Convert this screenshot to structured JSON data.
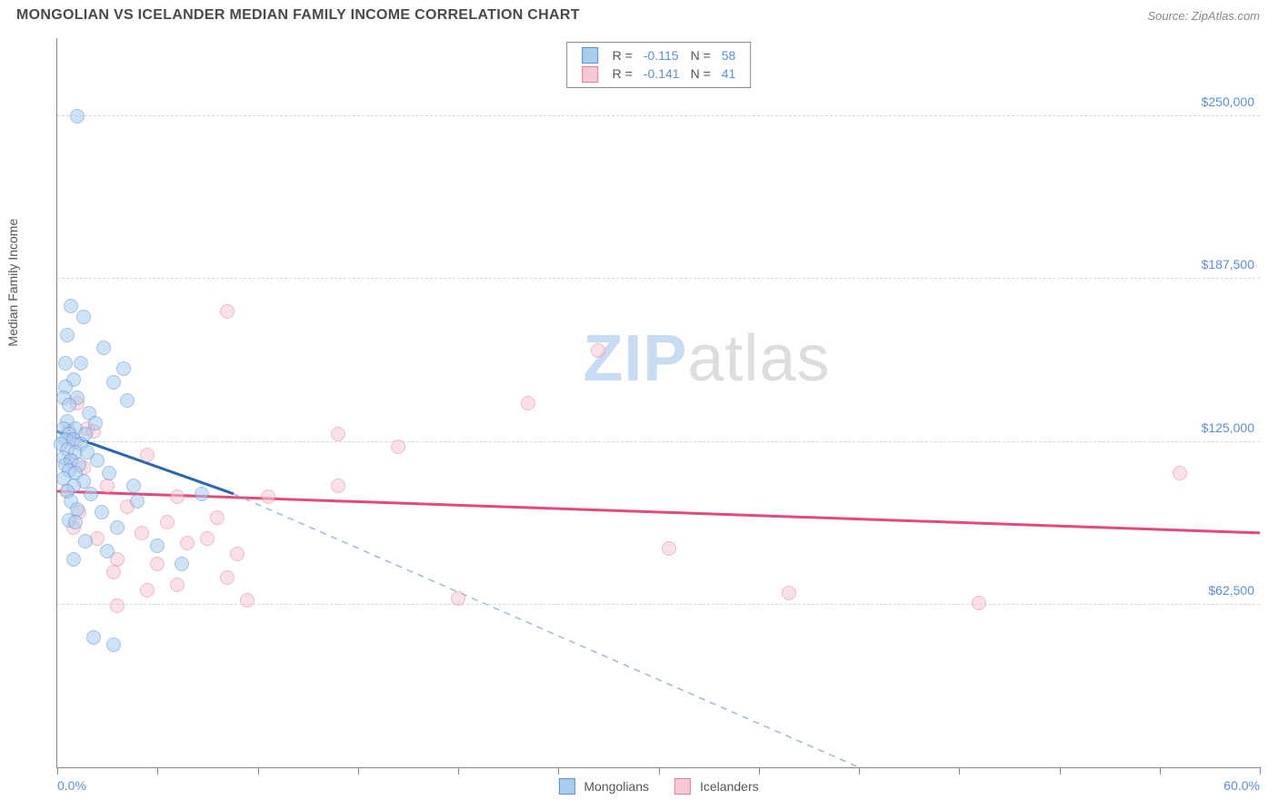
{
  "title": "MONGOLIAN VS ICELANDER MEDIAN FAMILY INCOME CORRELATION CHART",
  "source": "Source: ZipAtlas.com",
  "watermark": {
    "part1": "ZIP",
    "part2": "atlas"
  },
  "y_axis_label": "Median Family Income",
  "chart": {
    "type": "scatter",
    "background_color": "#ffffff",
    "grid_color": "#d8d8d8",
    "xlim": [
      0,
      60
    ],
    "ylim": [
      0,
      280000
    ],
    "x_range_labels": [
      "0.0%",
      "60.0%"
    ],
    "y_ticks": [
      {
        "v": 62500,
        "label": "$62,500"
      },
      {
        "v": 125000,
        "label": "$125,000"
      },
      {
        "v": 187500,
        "label": "$187,500"
      },
      {
        "v": 250000,
        "label": "$250,000"
      }
    ],
    "x_tick_positions": [
      0,
      5,
      10,
      15,
      20,
      25,
      30,
      35,
      40,
      45,
      50,
      55,
      60
    ],
    "label_color": "#5b8fd6",
    "label_fontsize": 14,
    "marker_radius": 8,
    "marker_opacity": 0.55,
    "series": {
      "mongolians": {
        "label": "Mongolians",
        "fill": "#a9cdef",
        "stroke": "#5b8fd6",
        "line_color": "#2b66b3",
        "line_width": 3,
        "dash_color": "#9bb9dd",
        "R": "-0.115",
        "N": "58",
        "trend_solid": {
          "x1": 0,
          "y1": 129000,
          "x2": 8.8,
          "y2": 105000
        },
        "trend_dashed": {
          "x1": 8.8,
          "y1": 105000,
          "x2": 40,
          "y2": 0
        },
        "points": [
          [
            1.0,
            250000
          ],
          [
            0.7,
            177000
          ],
          [
            1.3,
            173000
          ],
          [
            0.5,
            166000
          ],
          [
            2.3,
            161000
          ],
          [
            0.4,
            155000
          ],
          [
            1.2,
            155000
          ],
          [
            3.3,
            153000
          ],
          [
            0.8,
            149000
          ],
          [
            2.8,
            148000
          ],
          [
            0.4,
            146000
          ],
          [
            0.3,
            142000
          ],
          [
            1.0,
            142000
          ],
          [
            3.5,
            141000
          ],
          [
            0.6,
            139000
          ],
          [
            1.6,
            136000
          ],
          [
            0.5,
            133000
          ],
          [
            1.9,
            132000
          ],
          [
            0.3,
            130000
          ],
          [
            0.9,
            130000
          ],
          [
            0.6,
            128000
          ],
          [
            1.4,
            128000
          ],
          [
            0.4,
            126000
          ],
          [
            0.8,
            126000
          ],
          [
            0.2,
            124000
          ],
          [
            1.2,
            124000
          ],
          [
            0.5,
            122000
          ],
          [
            0.9,
            121000
          ],
          [
            1.5,
            121000
          ],
          [
            0.3,
            119000
          ],
          [
            0.7,
            118000
          ],
          [
            2.0,
            118000
          ],
          [
            0.4,
            116000
          ],
          [
            1.1,
            116000
          ],
          [
            0.6,
            114000
          ],
          [
            0.9,
            113000
          ],
          [
            2.6,
            113000
          ],
          [
            0.3,
            111000
          ],
          [
            1.3,
            110000
          ],
          [
            0.8,
            108000
          ],
          [
            3.8,
            108000
          ],
          [
            0.5,
            106000
          ],
          [
            1.7,
            105000
          ],
          [
            7.2,
            105000
          ],
          [
            0.7,
            102000
          ],
          [
            4.0,
            102000
          ],
          [
            1.0,
            99000
          ],
          [
            2.2,
            98000
          ],
          [
            0.6,
            95000
          ],
          [
            0.9,
            94000
          ],
          [
            3.0,
            92000
          ],
          [
            1.4,
            87000
          ],
          [
            5.0,
            85000
          ],
          [
            2.5,
            83000
          ],
          [
            0.8,
            80000
          ],
          [
            6.2,
            78000
          ],
          [
            1.8,
            50000
          ],
          [
            2.8,
            47000
          ]
        ]
      },
      "icelanders": {
        "label": "Icelanders",
        "fill": "#f7c9d4",
        "stroke": "#e97f9a",
        "line_color": "#e24a78",
        "line_width": 3,
        "R": "-0.141",
        "N": "41",
        "trend_solid": {
          "x1": 0,
          "y1": 106000,
          "x2": 60,
          "y2": 90000
        },
        "points": [
          [
            8.5,
            175000
          ],
          [
            27.0,
            160000
          ],
          [
            1.0,
            140000
          ],
          [
            23.5,
            140000
          ],
          [
            1.5,
            130000
          ],
          [
            0.6,
            129000
          ],
          [
            1.8,
            129000
          ],
          [
            14.0,
            128000
          ],
          [
            0.9,
            125000
          ],
          [
            17.0,
            123000
          ],
          [
            4.5,
            120000
          ],
          [
            0.7,
            118000
          ],
          [
            1.3,
            115000
          ],
          [
            56.0,
            113000
          ],
          [
            14.0,
            108000
          ],
          [
            2.5,
            108000
          ],
          [
            0.5,
            106000
          ],
          [
            6.0,
            104000
          ],
          [
            10.5,
            104000
          ],
          [
            3.5,
            100000
          ],
          [
            1.1,
            98000
          ],
          [
            8.0,
            96000
          ],
          [
            5.5,
            94000
          ],
          [
            0.8,
            92000
          ],
          [
            4.2,
            90000
          ],
          [
            2.0,
            88000
          ],
          [
            7.5,
            88000
          ],
          [
            6.5,
            86000
          ],
          [
            30.5,
            84000
          ],
          [
            9.0,
            82000
          ],
          [
            3.0,
            80000
          ],
          [
            5.0,
            78000
          ],
          [
            2.8,
            75000
          ],
          [
            8.5,
            73000
          ],
          [
            6.0,
            70000
          ],
          [
            4.5,
            68000
          ],
          [
            36.5,
            67000
          ],
          [
            20.0,
            65000
          ],
          [
            46.0,
            63000
          ],
          [
            9.5,
            64000
          ],
          [
            3.0,
            62000
          ]
        ]
      }
    },
    "legend_top": {
      "rows": [
        {
          "sw_fill": "#a9cdef",
          "sw_stroke": "#5b8fd6",
          "r_label": "R =",
          "r_val": "-0.115",
          "n_label": "N =",
          "n_val": "58"
        },
        {
          "sw_fill": "#f7c9d4",
          "sw_stroke": "#e97f9a",
          "r_label": "R =",
          "r_val": "-0.141",
          "n_label": "N =",
          "n_val": "41"
        }
      ]
    }
  }
}
